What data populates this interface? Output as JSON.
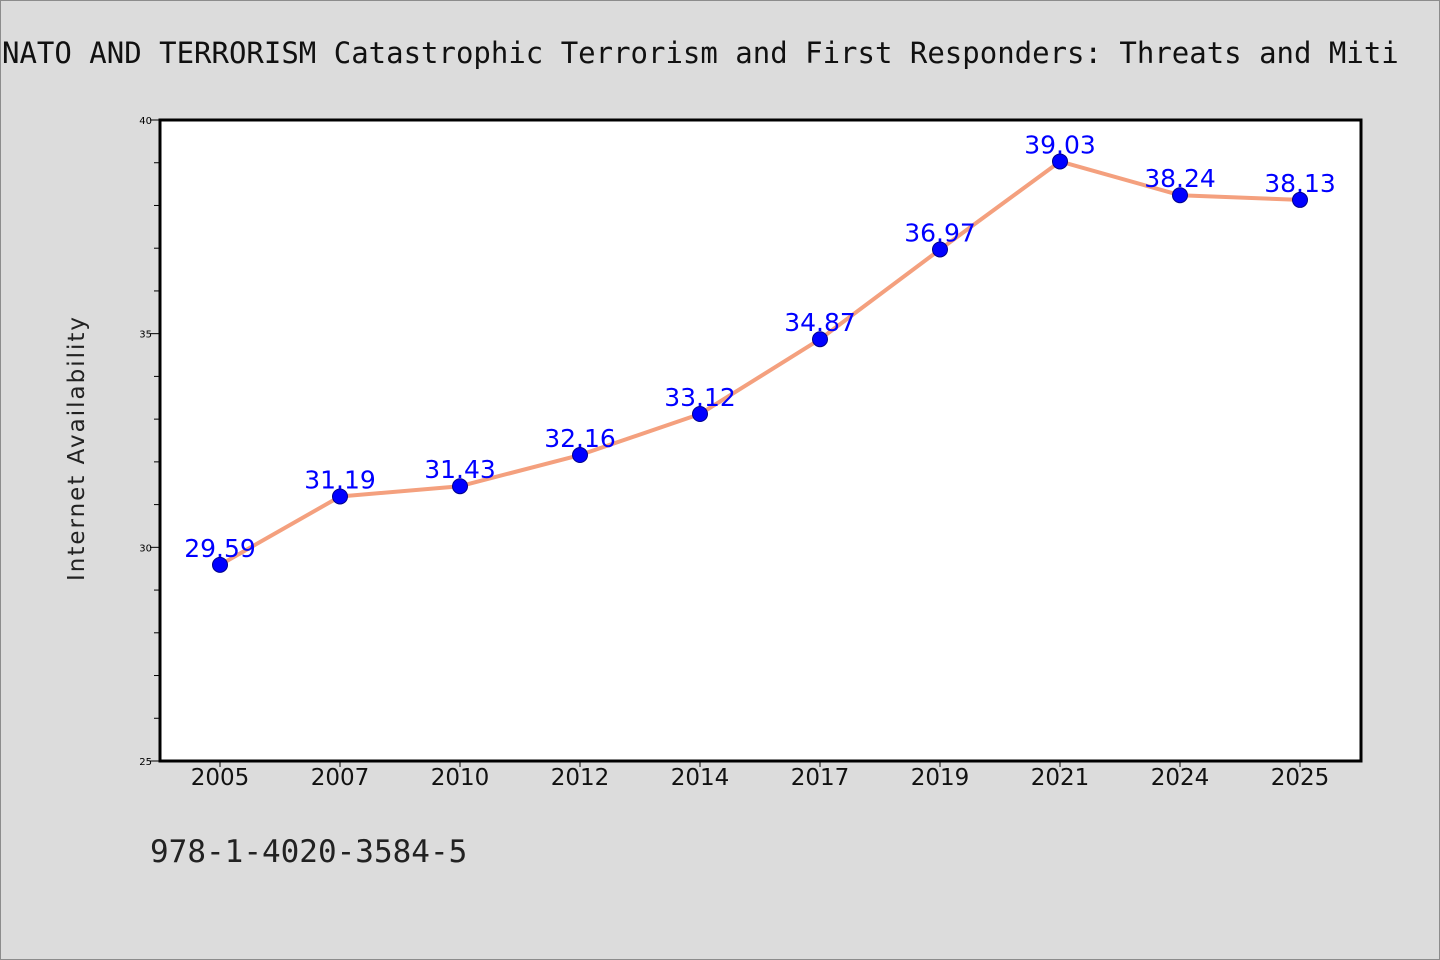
{
  "title": "NATO AND TERRORISM Catastrophic Terrorism and First Responders: Threats and Miti",
  "footnote": "978-1-4020-3584-5",
  "colors": {
    "background": "#dcdcdc",
    "plot_background": "#ffffff",
    "line": "#f4a07e",
    "marker": "#0000ff",
    "marker_edge": "#00008b",
    "data_label": "#0000ff"
  },
  "chart_data": {
    "type": "line",
    "title": "NATO AND TERRORISM Catastrophic Terrorism and First Responders: Threats and Miti",
    "xlabel": "",
    "ylabel": "Internet Availability",
    "categories": [
      "2005",
      "2007",
      "2010",
      "2012",
      "2014",
      "2017",
      "2019",
      "2021",
      "2024",
      "2025"
    ],
    "series": [
      {
        "values": [
          29.59,
          31.19,
          31.43,
          32.16,
          33.12,
          34.87,
          36.97,
          39.03,
          38.24,
          38.13
        ],
        "labels": [
          "29.59",
          "31.19",
          "31.43",
          "32.16",
          "33.12",
          "34.87",
          "36.97",
          "39.03",
          "38.24",
          "38.13"
        ]
      }
    ],
    "ylim": [
      25,
      40
    ],
    "yticks": [
      25,
      30,
      35,
      40
    ],
    "ytick_labels": [
      "25",
      "30",
      "35",
      "40"
    ],
    "y_minor_step": 1,
    "grid": false,
    "legend": "none",
    "markers": "circle"
  }
}
